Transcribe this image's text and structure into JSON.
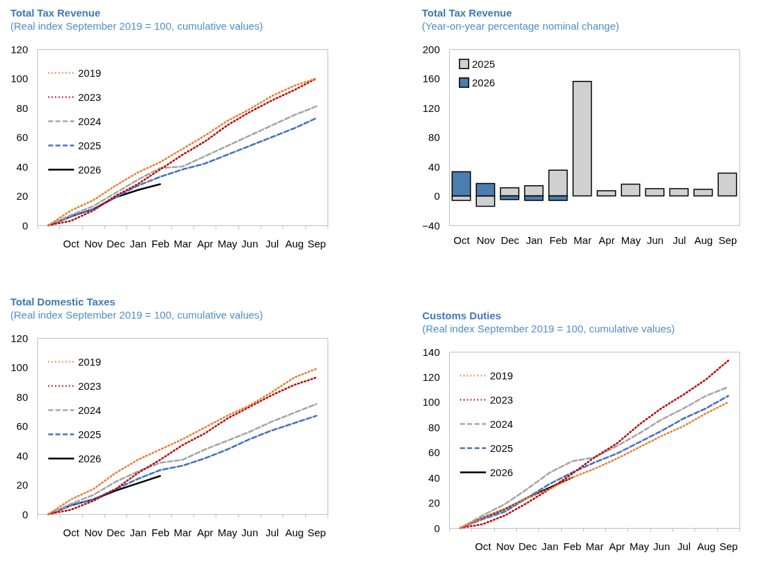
{
  "chart_data": [
    {
      "type": "line",
      "title": "Total Tax Revenue",
      "subtitle": "(Real index September 2019 = 100, cumulative values)",
      "categories": [
        null,
        "Oct",
        "Nov",
        "Dec",
        "Jan",
        "Feb",
        "Mar",
        "Apr",
        "May",
        "Jun",
        "Jul",
        "Aug",
        "Sep"
      ],
      "ylim": [
        0,
        120
      ],
      "yticks": [
        0,
        20,
        40,
        60,
        80,
        100,
        120
      ],
      "legend": "top left",
      "series": [
        {
          "name": "2019",
          "color": "#ed7d31",
          "line_style": "dotted",
          "values": [
            0,
            10,
            17,
            27,
            36,
            43,
            52,
            61,
            71,
            79,
            88,
            95,
            100
          ]
        },
        {
          "name": "2023",
          "color": "#c00000",
          "line_style": "dotted",
          "values": [
            0,
            3,
            10,
            20,
            28,
            38,
            48,
            57,
            68,
            77,
            85,
            92,
            100
          ]
        },
        {
          "name": "2024",
          "color": "#a5a5a5",
          "line_style": "dashed",
          "values": [
            0,
            7,
            13,
            22,
            31,
            39,
            40,
            47,
            54,
            61,
            68,
            75,
            81
          ]
        },
        {
          "name": "2025",
          "color": "#4472c4",
          "line_style": "dashed",
          "values": [
            0,
            6,
            11,
            19,
            27,
            33,
            38,
            42,
            48,
            54,
            60,
            66,
            73
          ]
        },
        {
          "name": "2026",
          "color": "#000000",
          "line_style": "solid",
          "values": [
            0,
            6,
            11,
            19,
            24,
            28,
            null,
            null,
            null,
            null,
            null,
            null,
            null
          ]
        }
      ]
    },
    {
      "type": "bar",
      "title": "Total Tax Revenue",
      "subtitle": "(Year-on-year percentage nominal change)",
      "categories": [
        "Oct",
        "Nov",
        "Dec",
        "Jan",
        "Feb",
        "Mar",
        "Apr",
        "May",
        "Jun",
        "Jul",
        "Aug",
        "Sep"
      ],
      "ylim": [
        -40,
        200
      ],
      "yticks": [
        -40,
        0,
        40,
        80,
        120,
        160,
        200
      ],
      "legend": "top left",
      "series": [
        {
          "name": "2025",
          "color": "#d0d0d0",
          "values": [
            -6,
            -14,
            11,
            14,
            35,
            156,
            7,
            16,
            10,
            10,
            9,
            31
          ]
        },
        {
          "name": "2026",
          "color": "#4a7eb0",
          "values": [
            33,
            17,
            -5,
            -6,
            -6,
            null,
            null,
            null,
            null,
            null,
            null,
            null
          ]
        }
      ]
    },
    {
      "type": "line",
      "title": "Total Domestic Taxes",
      "subtitle": "(Real index September 2019 = 100, cumulative values)",
      "categories": [
        null,
        "Oct",
        "Nov",
        "Dec",
        "Jan",
        "Feb",
        "Mar",
        "Apr",
        "May",
        "Jun",
        "Jul",
        "Aug",
        "Sep"
      ],
      "ylim": [
        0,
        120
      ],
      "yticks": [
        0,
        20,
        40,
        60,
        80,
        100,
        120
      ],
      "legend": "top left",
      "series": [
        {
          "name": "2019",
          "color": "#ed7d31",
          "line_style": "dotted",
          "values": [
            0,
            10,
            17,
            28,
            37,
            44,
            51,
            59,
            67,
            74,
            83,
            93,
            99
          ]
        },
        {
          "name": "2023",
          "color": "#c00000",
          "line_style": "dotted",
          "values": [
            0,
            3,
            9,
            17,
            28,
            37,
            47,
            55,
            65,
            73,
            81,
            88,
            93
          ]
        },
        {
          "name": "2024",
          "color": "#a5a5a5",
          "line_style": "dashed",
          "values": [
            0,
            7,
            13,
            22,
            29,
            35,
            37,
            44,
            50,
            56,
            63,
            69,
            75
          ]
        },
        {
          "name": "2025",
          "color": "#4472c4",
          "line_style": "dashed",
          "values": [
            0,
            6,
            10,
            17,
            24,
            30,
            33,
            38,
            44,
            51,
            57,
            62,
            67
          ]
        },
        {
          "name": "2026",
          "color": "#000000",
          "line_style": "solid",
          "values": [
            0,
            6,
            10,
            16,
            21,
            26,
            null,
            null,
            null,
            null,
            null,
            null,
            null
          ]
        }
      ]
    },
    {
      "type": "line",
      "title": "Customs Duties",
      "subtitle": "(Real index September 2019 = 100, cumulative values)",
      "categories": [
        null,
        "Oct",
        "Nov",
        "Dec",
        "Jan",
        "Feb",
        "Mar",
        "Apr",
        "May",
        "Jun",
        "Jul",
        "Aug",
        "Sep"
      ],
      "ylim": [
        0,
        140
      ],
      "yticks": [
        0,
        20,
        40,
        60,
        80,
        100,
        120,
        140
      ],
      "legend": "top left",
      "series": [
        {
          "name": "2019",
          "color": "#ed7d31",
          "line_style": "dotted",
          "values": [
            0,
            8,
            15,
            24,
            31,
            40,
            47,
            55,
            64,
            73,
            81,
            91,
            100
          ]
        },
        {
          "name": "2023",
          "color": "#c00000",
          "line_style": "dotted",
          "values": [
            0,
            3,
            10,
            20,
            31,
            43,
            56,
            67,
            82,
            95,
            106,
            118,
            133
          ]
        },
        {
          "name": "2024",
          "color": "#a5a5a5",
          "line_style": "dashed",
          "values": [
            0,
            10,
            19,
            31,
            44,
            53,
            56,
            65,
            75,
            86,
            95,
            105,
            112
          ]
        },
        {
          "name": "2025",
          "color": "#4472c4",
          "line_style": "dashed",
          "values": [
            0,
            7,
            13,
            24,
            35,
            44,
            52,
            59,
            68,
            77,
            87,
            95,
            105
          ]
        },
        {
          "name": "2026",
          "color": "#000000",
          "line_style": "solid",
          "values": [
            0,
            8,
            15,
            24,
            32,
            40,
            null,
            null,
            null,
            null,
            null,
            null,
            null
          ]
        }
      ]
    }
  ]
}
